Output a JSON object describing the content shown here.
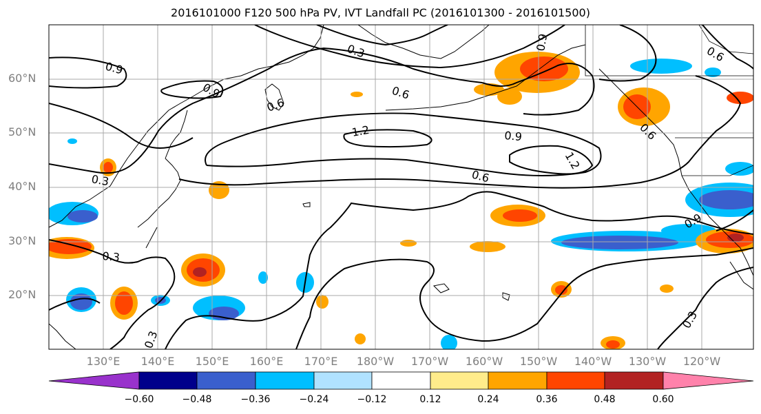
{
  "title": "2016101000 F120 500 hPa PV, IVT Landfall PC (2016101300 - 2016101500)",
  "lat_labels": [
    "60°N",
    "50°N",
    "40°N",
    "30°N",
    "20°N"
  ],
  "lon_labels": [
    "130°E",
    "140°E",
    "150°E",
    "160°E",
    "170°E",
    "180°W",
    "170°W",
    "160°W",
    "150°W",
    "140°W",
    "130°W",
    "120°W"
  ],
  "contour_labels": [
    "0.9",
    "0.9",
    "0.6",
    "0.3",
    "0.6",
    "1.2",
    "0.9",
    "1.2",
    "0.6",
    "0.6",
    "0.9",
    "0.6",
    "0.3",
    "0.3",
    "0.3",
    "0.3",
    "0.9"
  ],
  "colorbar": {
    "colors": [
      "#9932cc",
      "#00008b",
      "#3a5fcd",
      "#00bfff",
      "#b0e2ff",
      "#ffffff",
      "#ffec8b",
      "#ffa500",
      "#ff4500",
      "#b22222",
      "#ff82ab"
    ],
    "tick_labels": [
      "−0.60",
      "−0.48",
      "−0.36",
      "−0.24",
      "−0.12",
      "0.12",
      "0.24",
      "0.36",
      "0.48",
      "0.60"
    ]
  }
}
